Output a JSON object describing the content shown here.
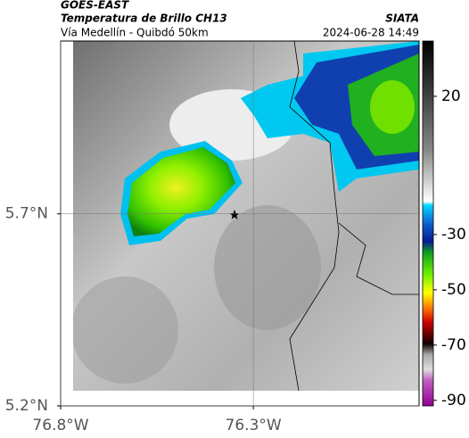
{
  "header": {
    "source": "GOES-EAST",
    "title": "Temperatura de Brillo CH13",
    "org": "SIATA",
    "subtitle": "Vía Medellín - Quibdó 50km",
    "datetime": "2024-06-28 14:49"
  },
  "map": {
    "xlim": [
      -76.8,
      -75.87
    ],
    "ylim": [
      5.2,
      6.15
    ],
    "xticks": [
      {
        "value": -76.8,
        "label": "76.8°W"
      },
      {
        "value": -76.3,
        "label": "76.3°W"
      }
    ],
    "yticks": [
      {
        "value": 5.2,
        "label": "5.2°N"
      },
      {
        "value": 5.7,
        "label": "5.7°N"
      }
    ],
    "grid": true
  },
  "colorbar": {
    "lim": [
      -92,
      40
    ],
    "ticks": [
      20,
      -30,
      -50,
      -70,
      -90
    ]
  }
}
